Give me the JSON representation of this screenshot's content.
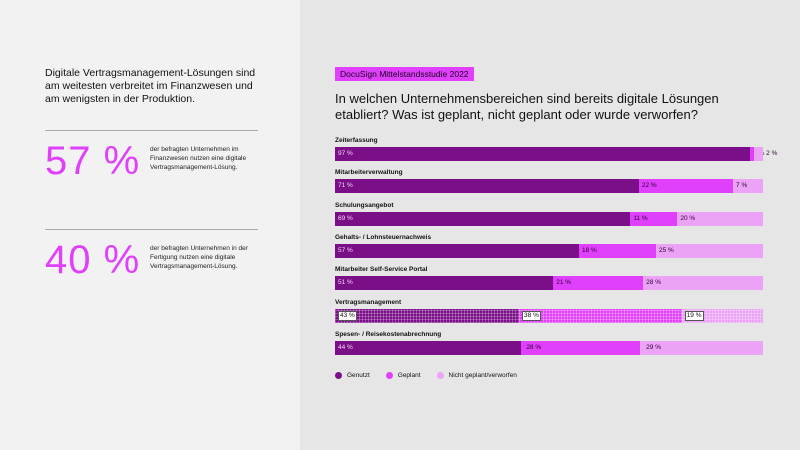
{
  "left": {
    "intro": "Digitale Vertragsmanagement-Lösungen sind am weitesten verbreitet im Finanzwesen und am wenigsten in der Produktion.",
    "stats": [
      {
        "value": "57 %",
        "text": "der befragten Unternehmen im Finanzwesen nutzen eine digitale Vertragsmanagement-Lösung."
      },
      {
        "value": "40 %",
        "text": "der befragten Unternehmen in der Fertigung nutzen eine digitale Vertragsmanagement-Lösung."
      }
    ]
  },
  "tag": "DocuSign Mittelstandsstudie 2022",
  "chart_data": {
    "type": "bar",
    "stacked": true,
    "orientation": "horizontal",
    "title": "In welchen Unternehmensbereichen sind bereits digitale Lösungen etabliert? Was ist geplant, nicht geplant oder wurde verworfen?",
    "categories": [
      "Zeiterfassung",
      "Mitarbeiterverwaltung",
      "Schulungsangebot",
      "Gehalts- / Lohnsteuernachweis",
      "Mitarbeiter Self-Service Portal",
      "Vertragsmanagement",
      "Spesen- / Reisekostenabrechnung"
    ],
    "highlighted": "Vertragsmanagement",
    "series": [
      {
        "name": "Genutzt",
        "color": "#7a0f87",
        "values": [
          97,
          71,
          69,
          57,
          51,
          43,
          44
        ]
      },
      {
        "name": "Geplant",
        "color": "#e040fb",
        "values": [
          1,
          22,
          11,
          18,
          21,
          38,
          28
        ]
      },
      {
        "name": "Nicht geplant/verworfen",
        "color": "#eba3f6",
        "values": [
          2,
          7,
          20,
          25,
          28,
          19,
          29
        ]
      }
    ],
    "unit": "%",
    "legend": "bottom-left"
  }
}
